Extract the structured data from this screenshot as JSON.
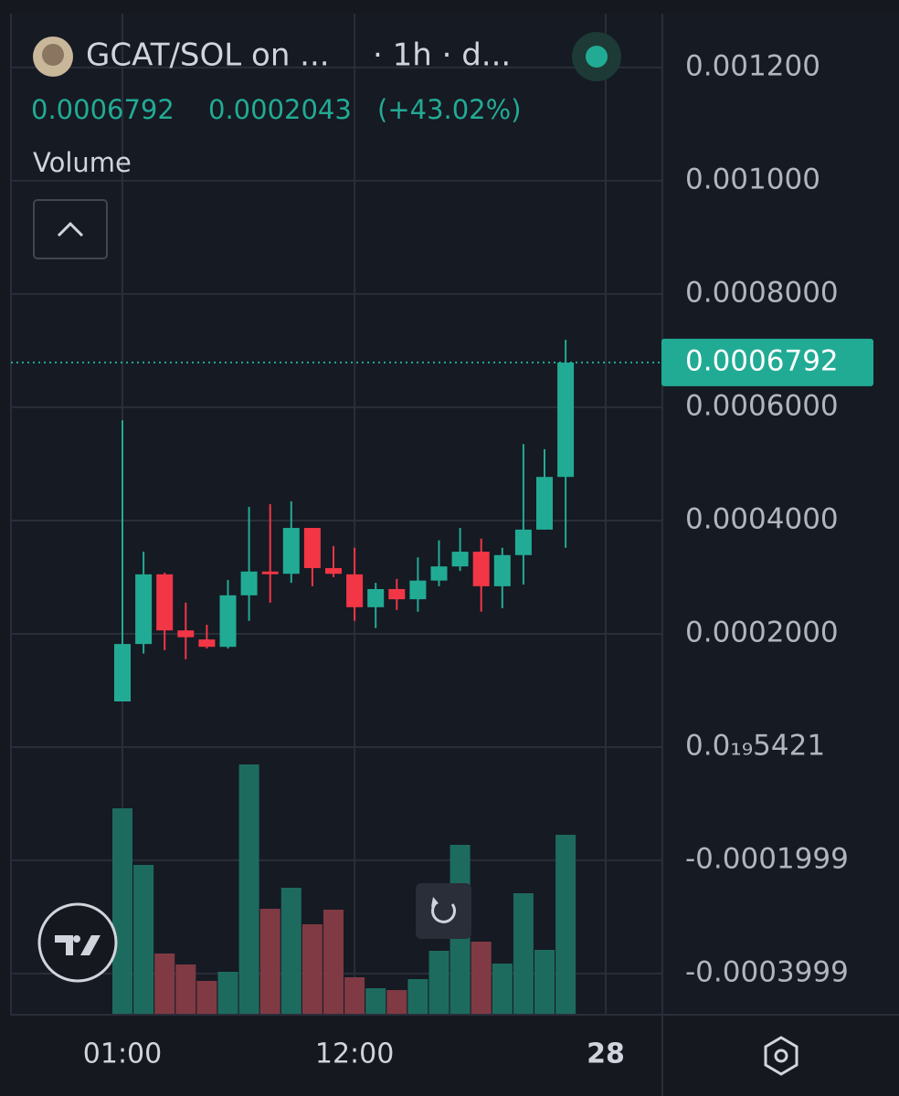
{
  "chart_data": {
    "type": "candlestick",
    "title": "GCAT/SOL on ...",
    "interval": "· 1h · d...",
    "price": "0.0006792",
    "change": "0.0002043",
    "change_pct": "(+43.02%)",
    "indicator": "Volume",
    "date_label": "28",
    "last_price": 0.0006792,
    "last_price_label": "0.0006792",
    "categories": [
      "01:00",
      null,
      null,
      null,
      null,
      null,
      null,
      null,
      null,
      null,
      null,
      "12:00",
      null,
      null,
      null,
      null,
      null,
      null,
      null,
      null,
      null,
      null
    ],
    "open": [
      8.06e-05,
      0.000182,
      0.000305,
      0.000206,
      0.00019,
      0.000177,
      0.000268,
      0.00031,
      0.000306,
      0.000387,
      0.000316,
      0.000305,
      0.000247,
      0.000279,
      0.000261,
      0.000294,
      0.000319,
      0.000345,
      0.000284,
      0.000339,
      0.000384,
      0.000477
    ],
    "high": [
      0.000577,
      0.000345,
      0.000308,
      0.000255,
      0.000216,
      0.000295,
      0.000424,
      0.000429,
      0.000434,
      0.000387,
      0.000355,
      0.000352,
      0.00029,
      0.000297,
      0.000335,
      0.000365,
      0.000387,
      0.000368,
      0.000352,
      0.000535,
      0.000526,
      0.000719
    ],
    "low": [
      8.06e-05,
      0.000165,
      0.000171,
      0.000155,
      0.000174,
      0.000174,
      0.000223,
      0.000255,
      0.00029,
      0.000284,
      0.0003,
      0.000223,
      0.00021,
      0.000242,
      0.000239,
      0.000284,
      0.000311,
      0.000239,
      0.000245,
      0.000287,
      0.000384,
      0.000352
    ],
    "close": [
      0.000182,
      0.000305,
      0.000206,
      0.000194,
      0.000177,
      0.000268,
      0.00031,
      0.000308,
      0.000387,
      0.000316,
      0.000306,
      0.000247,
      0.000279,
      0.000261,
      0.000294,
      0.000319,
      0.000345,
      0.000284,
      0.000339,
      0.000384,
      0.000477,
      0.000679
    ],
    "volume": [
      225,
      163,
      66,
      54,
      36,
      46,
      273,
      115,
      138,
      98,
      114,
      40,
      28,
      26,
      38,
      69,
      185,
      79,
      55,
      132,
      70,
      196
    ],
    "up_color": "#22ab94",
    "down_color": "#f23645",
    "volume_up_color": "#1d6b5f",
    "volume_down_color": "#803a44",
    "ylim": [
      -0.000471,
      0.001295
    ],
    "yticks": [
      {
        "value": 0.0012,
        "label": "0.001200"
      },
      {
        "value": 0.001,
        "label": "0.001000"
      },
      {
        "value": 0.0008,
        "label": "0.0008000"
      },
      {
        "value": 0.0006,
        "label": "0.0006000"
      },
      {
        "value": 0.0004,
        "label": "0.0004000"
      },
      {
        "value": 0.0002,
        "label": "0.0002000"
      },
      {
        "value": 5.421e-20,
        "label": "0.0₁₉5421"
      },
      -0.0001999,
      -0.0003999
    ],
    "grid": true
  }
}
